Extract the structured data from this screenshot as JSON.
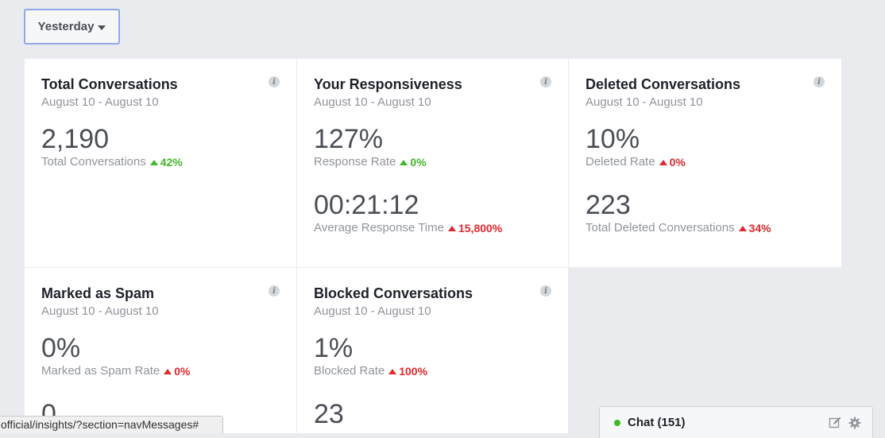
{
  "date_filter": {
    "label": "Yesterday"
  },
  "cards": [
    {
      "title": "Total Conversations",
      "range": "August 10 - August 10",
      "metrics": [
        {
          "value": "2,190",
          "label": "Total Conversations",
          "trend": "42%",
          "trend_color": "#42b72a"
        }
      ]
    },
    {
      "title": "Your Responsiveness",
      "range": "August 10 - August 10",
      "metrics": [
        {
          "value": "127%",
          "label": "Response Rate",
          "trend": "0%",
          "trend_color": "#42b72a"
        },
        {
          "value": "00:21:12",
          "label": "Average Response Time",
          "trend": "15,800%",
          "trend_color": "#e0282e"
        }
      ]
    },
    {
      "title": "Deleted Conversations",
      "range": "August 10 - August 10",
      "metrics": [
        {
          "value": "10%",
          "label": "Deleted Rate",
          "trend": "0%",
          "trend_color": "#e0282e"
        },
        {
          "value": "223",
          "label": "Total Deleted Conversations",
          "trend": "34%",
          "trend_color": "#e0282e"
        }
      ]
    },
    {
      "title": "Marked as Spam",
      "range": "August 10 - August 10",
      "metrics": [
        {
          "value": "0%",
          "label": "Marked as Spam Rate",
          "trend": "0%",
          "trend_color": "#e0282e"
        },
        {
          "value": "0",
          "label": "",
          "trend": ""
        }
      ]
    },
    {
      "title": "Blocked Conversations",
      "range": "August 10 - August 10",
      "metrics": [
        {
          "value": "1%",
          "label": "Blocked Rate",
          "trend": "100%",
          "trend_color": "#e0282e"
        },
        {
          "value": "23",
          "label": "",
          "trend": ""
        }
      ]
    }
  ],
  "status_url": "official/insights/?section=navMessages#",
  "chat": {
    "label": "Chat (151)",
    "icons": [
      "compose-icon",
      "gear-icon"
    ]
  }
}
